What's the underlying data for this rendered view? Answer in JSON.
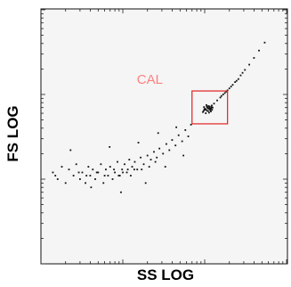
{
  "chart_data": {
    "type": "scatter",
    "title": "",
    "xlabel": "SS LOG",
    "ylabel": "FS LOG",
    "xscale": "log",
    "yscale": "log",
    "xlim": [
      1,
      1024
    ],
    "ylim": [
      1,
      1024
    ],
    "grid": false,
    "gate": {
      "label": "CAL",
      "x_range": [
        70,
        190
      ],
      "y_range": [
        45,
        110
      ]
    },
    "series": [
      {
        "points": [
          [
            1.4,
            12
          ],
          [
            1.6,
            10
          ],
          [
            1.8,
            14
          ],
          [
            2.0,
            9
          ],
          [
            2.2,
            13
          ],
          [
            2.5,
            11
          ],
          [
            2.7,
            15
          ],
          [
            3.0,
            10
          ],
          [
            3.2,
            12
          ],
          [
            3.5,
            9
          ],
          [
            3.8,
            14
          ],
          [
            4.0,
            11
          ],
          [
            4.3,
            13
          ],
          [
            4.6,
            10
          ],
          [
            5.0,
            12
          ],
          [
            5.4,
            15
          ],
          [
            5.8,
            9
          ],
          [
            6.2,
            13
          ],
          [
            6.6,
            11
          ],
          [
            7.0,
            14
          ],
          [
            7.5,
            10
          ],
          [
            8.0,
            12
          ],
          [
            8.6,
            16
          ],
          [
            9.2,
            11
          ],
          [
            9.8,
            13
          ],
          [
            10.5,
            15
          ],
          [
            11.2,
            12
          ],
          [
            12.0,
            17
          ],
          [
            13.0,
            14
          ],
          [
            14.0,
            16
          ],
          [
            15.0,
            13
          ],
          [
            16.5,
            18
          ],
          [
            18.0,
            15
          ],
          [
            20.0,
            19
          ],
          [
            22.0,
            17
          ],
          [
            24.0,
            21
          ],
          [
            26.0,
            18
          ],
          [
            28.0,
            23
          ],
          [
            31.0,
            20
          ],
          [
            34.0,
            26
          ],
          [
            37.0,
            22
          ],
          [
            40.0,
            29
          ],
          [
            44.0,
            25
          ],
          [
            48.0,
            33
          ],
          [
            53.0,
            28
          ],
          [
            58.0,
            38
          ],
          [
            63.0,
            32
          ],
          [
            68.0,
            44
          ],
          [
            2.3,
            22
          ],
          [
            4.1,
            8
          ],
          [
            6.9,
            24
          ],
          [
            9.5,
            7
          ],
          [
            15.5,
            27
          ],
          [
            19.0,
            9
          ],
          [
            27.0,
            35
          ],
          [
            33.0,
            14
          ],
          [
            45.0,
            41
          ],
          [
            55.0,
            19
          ],
          [
            1.5,
            11
          ],
          [
            2.9,
            12
          ],
          [
            3.6,
            11
          ],
          [
            4.8,
            12
          ],
          [
            6.0,
            11
          ],
          [
            7.8,
            13
          ],
          [
            8.9,
            11
          ],
          [
            10.0,
            12
          ],
          [
            11.5,
            13
          ],
          [
            12.5,
            11
          ],
          [
            13.8,
            13
          ],
          [
            17.0,
            13
          ],
          [
            21.0,
            14
          ],
          [
            25.0,
            16
          ],
          [
            95,
            62
          ],
          [
            100,
            66
          ],
          [
            103,
            60
          ],
          [
            108,
            70
          ],
          [
            110,
            64
          ],
          [
            112,
            68
          ],
          [
            115,
            72
          ],
          [
            117,
            65
          ],
          [
            120,
            69
          ],
          [
            122,
            74
          ],
          [
            98,
            71
          ],
          [
            105,
            75
          ],
          [
            113,
            61
          ],
          [
            119,
            63
          ],
          [
            125,
            70
          ],
          [
            101,
            68
          ],
          [
            107,
            64
          ],
          [
            111,
            73
          ],
          [
            116,
            67
          ],
          [
            121,
            71
          ],
          [
            104,
            66
          ],
          [
            109,
            69
          ],
          [
            114,
            70
          ],
          [
            118,
            68
          ],
          [
            123,
            66
          ],
          [
            97,
            64
          ],
          [
            106,
            72
          ],
          [
            99,
            67
          ],
          [
            130,
            78
          ],
          [
            142,
            85
          ],
          [
            155,
            92
          ],
          [
            168,
            100
          ],
          [
            183,
            108
          ],
          [
            200,
            118
          ],
          [
            220,
            130
          ],
          [
            245,
            145
          ],
          [
            275,
            168
          ],
          [
            310,
            195
          ],
          [
            350,
            225
          ],
          [
            400,
            270
          ],
          [
            460,
            330
          ],
          [
            540,
            410
          ],
          [
            160,
            96
          ],
          [
            176,
            104
          ],
          [
            190,
            112
          ],
          [
            210,
            124
          ],
          [
            235,
            140
          ],
          [
            258,
            152
          ],
          [
            290,
            180
          ]
        ]
      }
    ]
  }
}
